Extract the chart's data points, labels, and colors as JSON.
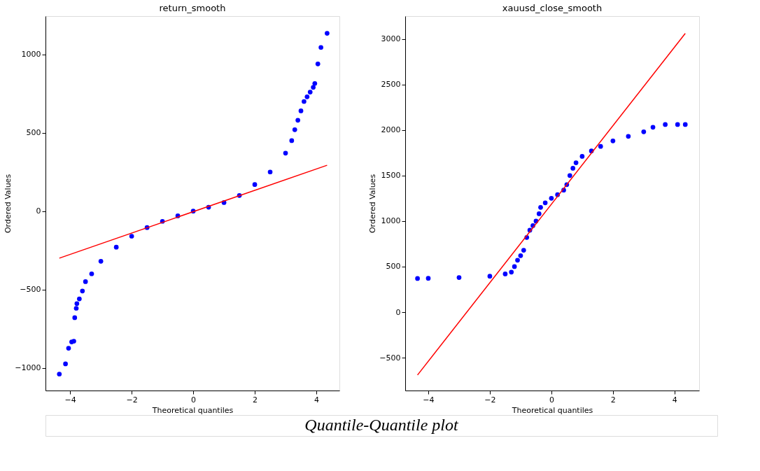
{
  "chart_data": [
    {
      "type": "scatter",
      "title": "return_smooth",
      "xlabel": "Theoretical quantiles",
      "ylabel": "Ordered Values",
      "xlim": [
        -4.8,
        4.75
      ],
      "ylim": [
        -1145,
        1245
      ],
      "xticks": [
        -4,
        -2,
        0,
        2,
        4
      ],
      "yticks": [
        -1000,
        -500,
        0,
        500,
        1000
      ],
      "grid": false,
      "annotations": [
        "Quantile-Quantile plot"
      ],
      "series": [
        {
          "type": "scatter",
          "marker": "circle",
          "color": "#0000ff",
          "x": [
            -4.35,
            -4.15,
            -4.05,
            -3.95,
            -3.88,
            -3.85,
            -3.8,
            -3.78,
            -3.7,
            -3.6,
            -3.5,
            -3.3,
            -3.0,
            -2.5,
            -2.0,
            -1.5,
            -1.0,
            -0.5,
            0.0,
            0.5,
            1.0,
            1.5,
            2.0,
            2.5,
            3.0,
            3.2,
            3.3,
            3.4,
            3.5,
            3.6,
            3.7,
            3.8,
            3.9,
            3.95,
            4.05,
            4.15,
            4.35
          ],
          "values": [
            -1040,
            -975,
            -875,
            -835,
            -830,
            -680,
            -620,
            -590,
            -560,
            -510,
            -450,
            -400,
            -320,
            -230,
            -160,
            -105,
            -65,
            -30,
            0,
            25,
            55,
            100,
            170,
            250,
            370,
            450,
            520,
            580,
            640,
            700,
            730,
            760,
            790,
            815,
            940,
            1045,
            1135
          ]
        },
        {
          "type": "line",
          "color": "#ff0000",
          "x": [
            -4.35,
            4.35
          ],
          "values": [
            -300,
            293
          ]
        }
      ]
    },
    {
      "type": "scatter",
      "title": "xauusd_close_smooth",
      "xlabel": "Theoretical quantiles",
      "ylabel": "Ordered Values",
      "xlim": [
        -4.75,
        4.8
      ],
      "ylim": [
        -860,
        3250
      ],
      "xticks": [
        -4,
        -2,
        0,
        2,
        4
      ],
      "yticks": [
        -500,
        0,
        500,
        1000,
        1500,
        2000,
        2500,
        3000
      ],
      "grid": false,
      "series": [
        {
          "type": "scatter",
          "marker": "circle",
          "color": "#0000ff",
          "x": [
            -4.35,
            -4.0,
            -3.0,
            -2.0,
            -1.5,
            -1.3,
            -1.2,
            -1.1,
            -1.0,
            -0.9,
            -0.8,
            -0.7,
            -0.6,
            -0.5,
            -0.4,
            -0.35,
            -0.2,
            0.0,
            0.2,
            0.4,
            0.5,
            0.6,
            0.7,
            0.8,
            1.0,
            1.3,
            1.6,
            2.0,
            2.5,
            3.0,
            3.3,
            3.7,
            4.1,
            4.35
          ],
          "values": [
            370,
            372,
            380,
            395,
            420,
            440,
            500,
            570,
            620,
            680,
            820,
            900,
            950,
            1000,
            1080,
            1150,
            1200,
            1250,
            1290,
            1340,
            1400,
            1500,
            1580,
            1640,
            1710,
            1770,
            1820,
            1880,
            1930,
            1980,
            2030,
            2060,
            2060,
            2060
          ]
        },
        {
          "type": "line",
          "color": "#ff0000",
          "x": [
            -4.35,
            4.35
          ],
          "values": [
            -690,
            3060
          ]
        }
      ]
    }
  ]
}
